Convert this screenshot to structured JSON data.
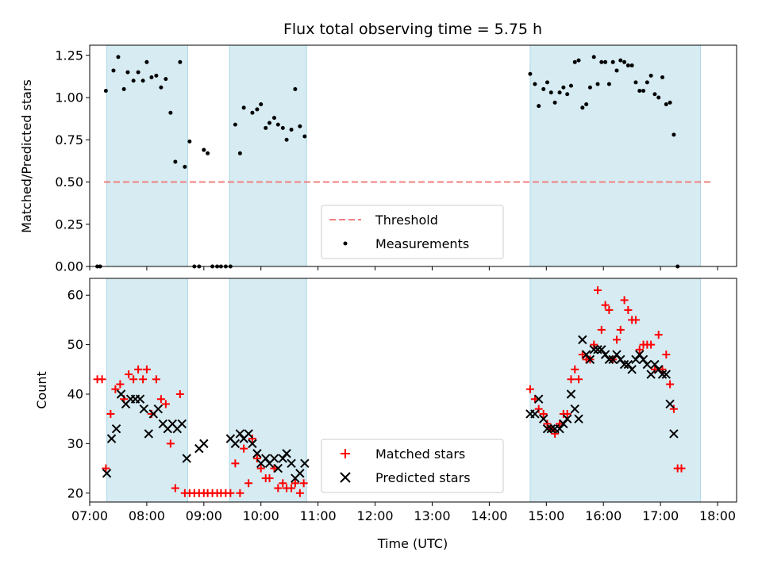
{
  "chart_data": [
    {
      "type": "scatter",
      "title": "Flux total observing time = 5.75 h",
      "ylabel": "Matched/Predicted stars",
      "xlim": [
        "07:00",
        "18:20"
      ],
      "ylim": [
        0,
        1.31
      ],
      "yticks": [
        "0.00",
        "0.25",
        "0.50",
        "0.75",
        "1.00",
        "1.25"
      ],
      "threshold": {
        "name": "Threshold",
        "value": 0.5,
        "x_range": [
          "07:15",
          "17:55"
        ],
        "color": "#f08080"
      },
      "shaded_intervals": [
        [
          "07:18",
          "08:43"
        ],
        [
          "09:27",
          "10:48"
        ],
        [
          "14:43",
          "17:42"
        ]
      ],
      "shade_color": "#add8e6",
      "legend": {
        "position": "lower-center",
        "entries": [
          "Threshold",
          "Measurements"
        ]
      },
      "series": [
        {
          "name": "Measurements",
          "marker": "dot",
          "color": "#000000",
          "points": [
            [
              "07:08",
              0
            ],
            [
              "07:11",
              0
            ],
            [
              "07:17",
              1.04
            ],
            [
              "07:25",
              1.16
            ],
            [
              "07:30",
              1.24
            ],
            [
              "07:36",
              1.05
            ],
            [
              "07:40",
              1.15
            ],
            [
              "07:46",
              1.1
            ],
            [
              "07:51",
              1.15
            ],
            [
              "07:56",
              1.1
            ],
            [
              "08:00",
              1.21
            ],
            [
              "08:05",
              1.12
            ],
            [
              "08:10",
              1.13
            ],
            [
              "08:15",
              1.06
            ],
            [
              "08:20",
              1.11
            ],
            [
              "08:25",
              0.91
            ],
            [
              "08:30",
              0.62
            ],
            [
              "08:35",
              1.21
            ],
            [
              "08:40",
              0.59
            ],
            [
              "08:45",
              0.74
            ],
            [
              "08:50",
              0
            ],
            [
              "08:55",
              0
            ],
            [
              "09:00",
              0.69
            ],
            [
              "09:04",
              0.67
            ],
            [
              "09:09",
              0
            ],
            [
              "09:14",
              0
            ],
            [
              "09:18",
              0
            ],
            [
              "09:23",
              0
            ],
            [
              "09:28",
              0
            ],
            [
              "09:33",
              0.84
            ],
            [
              "09:38",
              0.67
            ],
            [
              "09:42",
              0.94
            ],
            [
              "09:51",
              0.91
            ],
            [
              "09:56",
              0.93
            ],
            [
              "10:00",
              0.96
            ],
            [
              "10:05",
              0.82
            ],
            [
              "10:09",
              0.85
            ],
            [
              "10:14",
              0.88
            ],
            [
              "10:18",
              0.84
            ],
            [
              "10:23",
              0.82
            ],
            [
              "10:27",
              0.75
            ],
            [
              "10:32",
              0.81
            ],
            [
              "10:36",
              1.05
            ],
            [
              "10:41",
              0.83
            ],
            [
              "10:46",
              0.77
            ],
            [
              "14:43",
              1.14
            ],
            [
              "14:48",
              1.08
            ],
            [
              "14:52",
              0.95
            ],
            [
              "14:57",
              1.05
            ],
            [
              "15:01",
              1.09
            ],
            [
              "15:05",
              1.03
            ],
            [
              "15:09",
              0.97
            ],
            [
              "15:14",
              1.03
            ],
            [
              "15:18",
              1.06
            ],
            [
              "15:22",
              1.02
            ],
            [
              "15:26",
              1.07
            ],
            [
              "15:30",
              1.21
            ],
            [
              "15:34",
              1.22
            ],
            [
              "15:38",
              0.94
            ],
            [
              "15:42",
              0.96
            ],
            [
              "15:46",
              1.06
            ],
            [
              "15:50",
              1.24
            ],
            [
              "15:54",
              1.08
            ],
            [
              "15:58",
              1.21
            ],
            [
              "16:02",
              1.21
            ],
            [
              "16:06",
              1.08
            ],
            [
              "16:10",
              1.21
            ],
            [
              "16:14",
              1.16
            ],
            [
              "16:18",
              1.22
            ],
            [
              "16:22",
              1.21
            ],
            [
              "16:26",
              1.19
            ],
            [
              "16:30",
              1.19
            ],
            [
              "16:34",
              1.09
            ],
            [
              "16:38",
              1.04
            ],
            [
              "16:42",
              1.04
            ],
            [
              "16:46",
              1.09
            ],
            [
              "16:50",
              1.13
            ],
            [
              "16:54",
              1.02
            ],
            [
              "16:58",
              1.0
            ],
            [
              "17:02",
              1.12
            ],
            [
              "17:06",
              0.96
            ],
            [
              "17:10",
              0.97
            ],
            [
              "17:14",
              0.78
            ],
            [
              "17:18",
              0
            ]
          ]
        }
      ]
    },
    {
      "type": "scatter",
      "xlabel": "Time (UTC)",
      "ylabel": "Count",
      "xlim": [
        "07:00",
        "18:20"
      ],
      "ylim": [
        18.2,
        63.4
      ],
      "yticks": [
        "20",
        "30",
        "40",
        "50",
        "60"
      ],
      "xticks": [
        "07:00",
        "08:00",
        "09:00",
        "10:00",
        "11:00",
        "12:00",
        "13:00",
        "14:00",
        "15:00",
        "16:00",
        "17:00",
        "18:00"
      ],
      "shaded_intervals": [
        [
          "07:18",
          "08:43"
        ],
        [
          "09:27",
          "10:48"
        ],
        [
          "14:43",
          "17:42"
        ]
      ],
      "shade_color": "#add8e6",
      "legend": {
        "position": "lower-center",
        "entries": [
          "Matched stars",
          "Predicted stars"
        ]
      },
      "series": [
        {
          "name": "Matched stars",
          "marker": "plus",
          "color": "#ff0000",
          "points": [
            [
              "07:08",
              43
            ],
            [
              "07:13",
              43
            ],
            [
              "07:17",
              25
            ],
            [
              "07:22",
              36
            ],
            [
              "07:27",
              41
            ],
            [
              "07:32",
              42
            ],
            [
              "07:36",
              39
            ],
            [
              "07:41",
              44
            ],
            [
              "07:46",
              43
            ],
            [
              "07:51",
              45
            ],
            [
              "07:56",
              43
            ],
            [
              "08:00",
              45
            ],
            [
              "08:05",
              36
            ],
            [
              "08:10",
              43
            ],
            [
              "08:15",
              39
            ],
            [
              "08:20",
              38
            ],
            [
              "08:25",
              30
            ],
            [
              "08:30",
              21
            ],
            [
              "08:35",
              40
            ],
            [
              "08:40",
              20
            ],
            [
              "08:45",
              20
            ],
            [
              "08:50",
              20
            ],
            [
              "08:55",
              20
            ],
            [
              "09:00",
              20
            ],
            [
              "09:04",
              20
            ],
            [
              "09:09",
              20
            ],
            [
              "09:14",
              20
            ],
            [
              "09:18",
              20
            ],
            [
              "09:23",
              20
            ],
            [
              "09:28",
              20
            ],
            [
              "09:33",
              26
            ],
            [
              "09:38",
              20
            ],
            [
              "09:42",
              29
            ],
            [
              "09:47",
              22
            ],
            [
              "09:51",
              31
            ],
            [
              "09:56",
              27
            ],
            [
              "10:00",
              25
            ],
            [
              "10:05",
              23
            ],
            [
              "10:09",
              23
            ],
            [
              "10:14",
              25
            ],
            [
              "10:18",
              21
            ],
            [
              "10:23",
              22
            ],
            [
              "10:27",
              21
            ],
            [
              "10:32",
              21
            ],
            [
              "10:36",
              22
            ],
            [
              "10:41",
              20
            ],
            [
              "10:45",
              22
            ],
            [
              "14:43",
              41
            ],
            [
              "14:48",
              39
            ],
            [
              "14:52",
              37
            ],
            [
              "14:57",
              36
            ],
            [
              "15:01",
              34
            ],
            [
              "15:05",
              33
            ],
            [
              "15:09",
              32
            ],
            [
              "15:14",
              34
            ],
            [
              "15:18",
              36
            ],
            [
              "15:22",
              36
            ],
            [
              "15:26",
              43
            ],
            [
              "15:30",
              45
            ],
            [
              "15:34",
              43
            ],
            [
              "15:38",
              48
            ],
            [
              "15:42",
              47
            ],
            [
              "15:46",
              47
            ],
            [
              "15:50",
              50
            ],
            [
              "15:54",
              61
            ],
            [
              "15:58",
              53
            ],
            [
              "16:02",
              58
            ],
            [
              "16:06",
              57
            ],
            [
              "16:10",
              47
            ],
            [
              "16:14",
              51
            ],
            [
              "16:18",
              53
            ],
            [
              "16:22",
              59
            ],
            [
              "16:26",
              57
            ],
            [
              "16:30",
              55
            ],
            [
              "16:34",
              55
            ],
            [
              "16:38",
              49
            ],
            [
              "16:42",
              50
            ],
            [
              "16:46",
              50
            ],
            [
              "16:50",
              50
            ],
            [
              "16:54",
              45
            ],
            [
              "16:58",
              52
            ],
            [
              "17:02",
              45
            ],
            [
              "17:06",
              48
            ],
            [
              "17:10",
              42
            ],
            [
              "17:14",
              37
            ],
            [
              "17:18",
              25
            ],
            [
              "17:22",
              25
            ]
          ]
        },
        {
          "name": "Predicted stars",
          "marker": "x",
          "color": "#000000",
          "points": [
            [
              "07:18",
              24
            ],
            [
              "07:23",
              31
            ],
            [
              "07:28",
              33
            ],
            [
              "07:33",
              40
            ],
            [
              "07:38",
              38
            ],
            [
              "07:43",
              39
            ],
            [
              "07:48",
              39
            ],
            [
              "07:53",
              39
            ],
            [
              "07:57",
              37
            ],
            [
              "08:02",
              32
            ],
            [
              "08:07",
              36
            ],
            [
              "08:12",
              37
            ],
            [
              "08:17",
              34
            ],
            [
              "08:22",
              33
            ],
            [
              "08:27",
              34
            ],
            [
              "08:32",
              33
            ],
            [
              "08:37",
              34
            ],
            [
              "08:42",
              27
            ],
            [
              "08:55",
              29
            ],
            [
              "09:00",
              30
            ],
            [
              "09:28",
              31
            ],
            [
              "09:33",
              30
            ],
            [
              "09:38",
              32
            ],
            [
              "09:42",
              31
            ],
            [
              "09:47",
              32
            ],
            [
              "09:51",
              30
            ],
            [
              "09:56",
              28
            ],
            [
              "10:00",
              26
            ],
            [
              "10:05",
              27
            ],
            [
              "10:09",
              26
            ],
            [
              "10:14",
              27
            ],
            [
              "10:18",
              25
            ],
            [
              "10:23",
              27
            ],
            [
              "10:27",
              28
            ],
            [
              "10:32",
              26
            ],
            [
              "10:36",
              23
            ],
            [
              "10:41",
              24
            ],
            [
              "10:46",
              26
            ],
            [
              "14:43",
              36
            ],
            [
              "14:48",
              36
            ],
            [
              "14:52",
              39
            ],
            [
              "14:57",
              35
            ],
            [
              "15:01",
              33
            ],
            [
              "15:05",
              33
            ],
            [
              "15:09",
              33
            ],
            [
              "15:14",
              33
            ],
            [
              "15:18",
              34
            ],
            [
              "15:22",
              35
            ],
            [
              "15:26",
              40
            ],
            [
              "15:30",
              37
            ],
            [
              "15:34",
              35
            ],
            [
              "15:38",
              51
            ],
            [
              "15:42",
              48
            ],
            [
              "15:46",
              47
            ],
            [
              "15:50",
              49
            ],
            [
              "15:54",
              49
            ],
            [
              "15:58",
              49
            ],
            [
              "16:02",
              48
            ],
            [
              "16:06",
              47
            ],
            [
              "16:10",
              47
            ],
            [
              "16:14",
              48
            ],
            [
              "16:18",
              47
            ],
            [
              "16:22",
              46
            ],
            [
              "16:26",
              46
            ],
            [
              "16:30",
              45
            ],
            [
              "16:34",
              47
            ],
            [
              "16:38",
              48
            ],
            [
              "16:42",
              47
            ],
            [
              "16:46",
              46
            ],
            [
              "16:50",
              44
            ],
            [
              "16:54",
              46
            ],
            [
              "16:58",
              45
            ],
            [
              "17:02",
              44
            ],
            [
              "17:06",
              44
            ],
            [
              "17:10",
              38
            ],
            [
              "17:14",
              32
            ]
          ]
        }
      ]
    }
  ]
}
